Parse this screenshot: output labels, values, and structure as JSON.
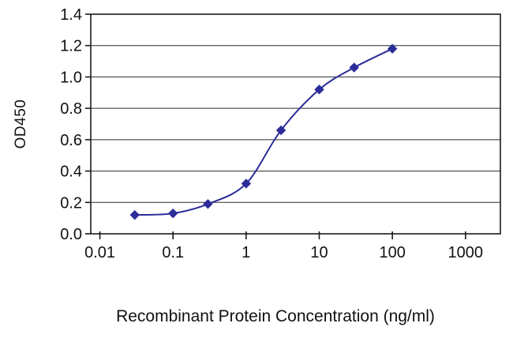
{
  "chart_data": {
    "type": "line",
    "title": "",
    "xlabel": "Recombinant Protein Concentration (ng/ml)",
    "ylabel": "OD450",
    "x_scale": "log",
    "x": [
      0.03,
      0.1,
      0.3,
      1,
      3,
      10,
      30,
      100
    ],
    "y": [
      0.12,
      0.13,
      0.19,
      0.32,
      0.66,
      0.92,
      1.06,
      1.18
    ],
    "xlim": [
      0.0075,
      3000
    ],
    "ylim": [
      0,
      1.4
    ],
    "xticks": [
      0.01,
      0.1,
      1,
      10,
      100,
      1000
    ],
    "xtick_labels": [
      "0.01",
      "0.1",
      "1",
      "10",
      "100",
      "1000"
    ],
    "yticks": [
      0.0,
      0.2,
      0.4,
      0.6,
      0.8,
      1.0,
      1.2,
      1.4
    ],
    "ytick_labels": [
      "0.0",
      "0.2",
      "0.4",
      "0.6",
      "0.8",
      "1.0",
      "1.2",
      "1.4"
    ],
    "grid": "horizontal",
    "legend": "none",
    "line_color": "#2c2c9a",
    "marker": "diamond",
    "marker_color": "#2c2c9a",
    "axis_color": "#1a1a1a",
    "grid_color": "#2b2b2b"
  }
}
